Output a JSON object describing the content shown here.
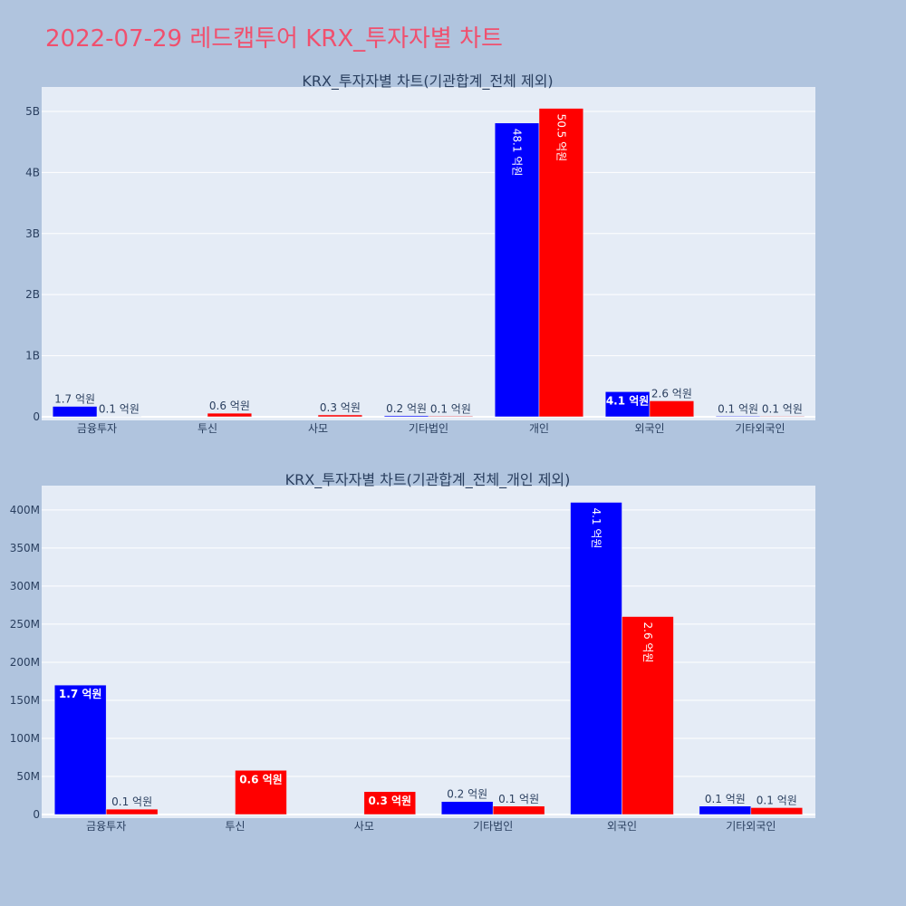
{
  "page_title": "2022-07-29 레드캡투어 KRX_투자자별 차트",
  "colors": {
    "background": "#b0c4de",
    "plot_bg": "#e5ecf6",
    "grid": "#ffffff",
    "title": "#f0506e",
    "text": "#2a3f5f",
    "buy": "#0000ff",
    "sell": "#ff0000"
  },
  "chart_data": [
    {
      "type": "bar",
      "title": "KRX_투자자별 차트(기관합계_전체 제외)",
      "categories": [
        "금융투자",
        "투신",
        "사모",
        "기타법인",
        "개인",
        "외국인",
        "기타외국인"
      ],
      "yticks": [
        0,
        1000000000,
        2000000000,
        3000000000,
        4000000000,
        5000000000
      ],
      "ytick_labels": [
        "0",
        "1B",
        "2B",
        "3B",
        "4B",
        "5B"
      ],
      "ylim": [
        0,
        5400000000
      ],
      "series": [
        {
          "color": "#0000ff",
          "values": [
            170000000,
            0,
            0,
            17000000,
            4810000000,
            410000000,
            11000000
          ],
          "labels": [
            "1.7 억원",
            "",
            "",
            "0.2 억원",
            "48.1 억원",
            "4.1 억원",
            "0.1 억원"
          ]
        },
        {
          "color": "#ff0000",
          "values": [
            7000000,
            58000000,
            30000000,
            11000000,
            5050000000,
            260000000,
            9000000
          ],
          "labels": [
            "0.1 억원",
            "0.6 억원",
            "0.3 억원",
            "0.1 억원",
            "50.5 억원",
            "2.6 억원",
            "0.1 억원"
          ]
        }
      ]
    },
    {
      "type": "bar",
      "title": "KRX_투자자별 차트(기관합계_전체_개인 제외)",
      "categories": [
        "금융투자",
        "투신",
        "사모",
        "기타법인",
        "외국인",
        "기타외국인"
      ],
      "yticks": [
        0,
        50000000,
        100000000,
        150000000,
        200000000,
        250000000,
        300000000,
        350000000,
        400000000
      ],
      "ytick_labels": [
        "0",
        "50M",
        "100M",
        "150M",
        "200M",
        "250M",
        "300M",
        "350M",
        "400M"
      ],
      "ylim": [
        0,
        432000000
      ],
      "series": [
        {
          "color": "#0000ff",
          "values": [
            170000000,
            0,
            0,
            17000000,
            410000000,
            11000000
          ],
          "labels": [
            "1.7 억원",
            "",
            "",
            "0.2 억원",
            "4.1 억원",
            "0.1 억원"
          ]
        },
        {
          "color": "#ff0000",
          "values": [
            7000000,
            58000000,
            30000000,
            11000000,
            260000000,
            9000000
          ],
          "labels": [
            "0.1 억원",
            "0.6 억원",
            "0.3 억원",
            "0.1 억원",
            "2.6 억원",
            "0.1 억원"
          ]
        }
      ]
    }
  ]
}
